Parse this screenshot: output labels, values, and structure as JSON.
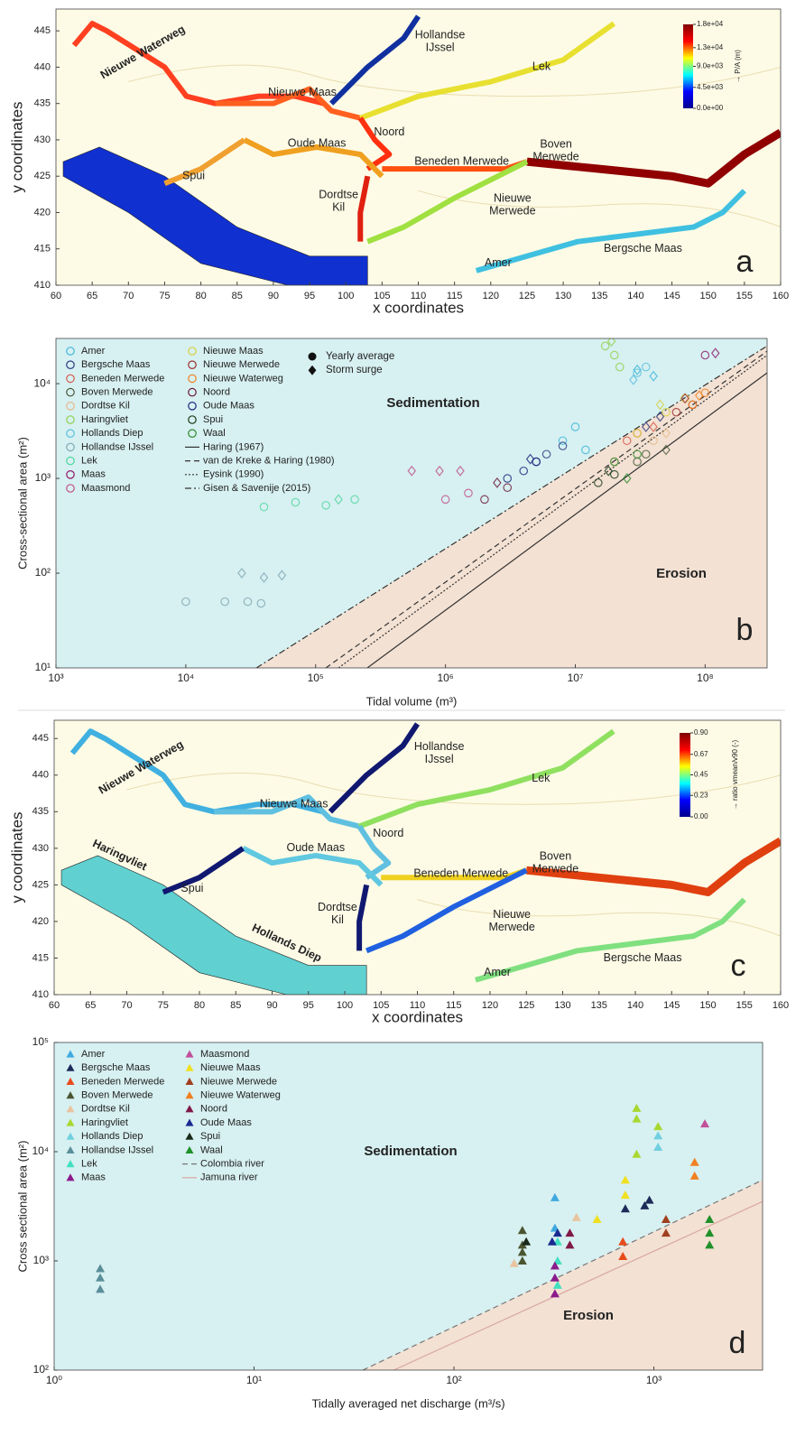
{
  "chart_data": [
    {
      "type": "map",
      "panel_label": "a",
      "xlabel": "x coordinates",
      "ylabel": "y coordinates",
      "xlim": [
        60,
        160
      ],
      "ylim": [
        410,
        448
      ],
      "xticks": [
        60,
        65,
        70,
        75,
        80,
        85,
        90,
        95,
        100,
        105,
        110,
        115,
        120,
        125,
        130,
        135,
        140,
        145,
        150,
        155,
        160
      ],
      "yticks": [
        410,
        415,
        420,
        425,
        430,
        435,
        440,
        445
      ],
      "colorbar": {
        "label": "→ P/A (m)",
        "clim": [
          0,
          18000
        ],
        "colors": [
          "#00008f",
          "#0000ff",
          "#00ffff",
          "#ffff00",
          "#ff0000",
          "#800000"
        ],
        "ticks": [
          {
            "value": 0,
            "label": "0.0e+00"
          },
          {
            "value": 4500,
            "label": "4.5e+03"
          },
          {
            "value": 9000,
            "label": "9.0e+03"
          },
          {
            "value": 13000,
            "label": "1.3e+04"
          },
          {
            "value": 18000,
            "label": "1.8e+04"
          }
        ]
      },
      "place_names": [
        [
          "Nieuwe Waterweg"
        ],
        [
          "Hollandse",
          "IJssel"
        ],
        [
          "Lek"
        ],
        [
          "Nieuwe Maas"
        ],
        [
          "Noord"
        ],
        [
          "Oude Maas"
        ],
        [
          "Beneden Merwede"
        ],
        [
          "Boven",
          "Merwede"
        ],
        [
          "Spui"
        ],
        [
          "Dordtse",
          "Kil"
        ],
        [
          "Nieuwe",
          "Merwede"
        ],
        [
          "Bergsche Maas"
        ],
        [
          "Amer"
        ]
      ]
    },
    {
      "type": "scatter",
      "panel_label": "b",
      "xlabel": "Tidal volume (m³)",
      "ylabel": "Cross-sectional area (m²)",
      "log_x": true,
      "log_y": true,
      "xlim": [
        1000,
        300000000
      ],
      "ylim": [
        10,
        30000
      ],
      "xticks": [
        {
          "value": 1000,
          "label": "10³"
        },
        {
          "value": 10000,
          "label": "10⁴"
        },
        {
          "value": 100000,
          "label": "10⁵"
        },
        {
          "value": 1000000,
          "label": "10⁶"
        },
        {
          "value": 10000000,
          "label": "10⁷"
        },
        {
          "value": 100000000,
          "label": "10⁸"
        }
      ],
      "yticks": [
        {
          "value": 10,
          "label": "10¹"
        },
        {
          "value": 100,
          "label": "10²"
        },
        {
          "value": 1000,
          "label": "10³"
        },
        {
          "value": 10000,
          "label": "10⁴"
        }
      ],
      "region_colors": {
        "sedimentation": "#d7f0f1",
        "erosion": "#f3e1d3"
      },
      "annotations": [
        {
          "text": "Sedimentation",
          "color": "#5b9bd5"
        },
        {
          "text": "Erosion",
          "color": "#d9342b"
        }
      ],
      "marker_legend": [
        "Yearly average",
        "Storm surge"
      ],
      "series": [
        {
          "name": "Amer",
          "color": "#3fb7d9",
          "x": [
            8000000,
            10000000,
            12000000
          ],
          "values": [
            2500,
            3500,
            2000
          ],
          "storm_x": [
            30000000,
            40000000
          ],
          "storm_values": [
            14000,
            12000
          ]
        },
        {
          "name": "Bergsche Maas",
          "color": "#2b3a80",
          "x": [
            5000000,
            6000000,
            8000000
          ],
          "values": [
            1500,
            1800,
            2200
          ],
          "storm_x": [
            35000000,
            45000000
          ],
          "storm_values": [
            3500,
            4500
          ]
        },
        {
          "name": "Beneden Merwede",
          "color": "#d45a4a",
          "x": [
            25000000,
            30000000
          ],
          "values": [
            2500,
            3000
          ],
          "storm_x": [
            40000000
          ],
          "storm_values": [
            3500
          ]
        },
        {
          "name": "Boven Merwede",
          "color": "#4a5a3a",
          "x": [
            30000000,
            35000000
          ],
          "values": [
            1500,
            1800
          ],
          "storm_x": [
            50000000
          ],
          "storm_values": [
            2000
          ]
        },
        {
          "name": "Dordtse Kil",
          "color": "#e6b98a",
          "x": [
            20000000,
            40000000
          ],
          "values": [
            1500,
            2500
          ],
          "storm_x": [
            50000000
          ],
          "storm_values": [
            3000
          ]
        },
        {
          "name": "Haringvliet",
          "color": "#8fd14f",
          "x": [
            17000000,
            20000000,
            22000000
          ],
          "values": [
            25000,
            20000,
            15000
          ],
          "storm_x": [
            19000000
          ],
          "storm_values": [
            28000
          ]
        },
        {
          "name": "Hollands Diep",
          "color": "#5bc0de",
          "x": [
            30000000,
            35000000
          ],
          "values": [
            13000,
            15000
          ],
          "storm_x": [
            28000000
          ],
          "storm_values": [
            11000
          ]
        },
        {
          "name": "Hollandse IJssel",
          "color": "#7fa8b4",
          "x": [
            10000,
            20000,
            30000,
            38000
          ],
          "values": [
            50,
            50,
            50,
            48
          ],
          "storm_x": [
            27000,
            40000,
            55000
          ],
          "storm_values": [
            100,
            90,
            95
          ]
        },
        {
          "name": "Lek",
          "color": "#4fd6a0",
          "x": [
            40000,
            70000,
            120000,
            200000
          ],
          "values": [
            500,
            560,
            520,
            600
          ],
          "storm_x": [
            150000
          ],
          "storm_values": [
            600
          ]
        },
        {
          "name": "Maas",
          "color": "#8b1a6b",
          "x": [
            100000000
          ],
          "values": [
            20000
          ],
          "storm_x": [
            120000000
          ],
          "storm_values": [
            21000
          ]
        },
        {
          "name": "Maasmond",
          "color": "#c0508a",
          "x": [
            1000000,
            1500000
          ],
          "values": [
            600,
            700
          ],
          "storm_x": [
            550000,
            900000,
            1300000
          ],
          "storm_values": [
            1200,
            1200,
            1200
          ]
        },
        {
          "name": "Nieuwe Maas",
          "color": "#d8d040",
          "x": [
            30000000,
            50000000,
            70000000
          ],
          "values": [
            3000,
            5000,
            7000
          ],
          "storm_x": [
            45000000
          ],
          "storm_values": [
            6000
          ]
        },
        {
          "name": "Nieuwe Merwede",
          "color": "#9b3030",
          "x": [
            60000000,
            80000000
          ],
          "values": [
            5000,
            6000
          ],
          "storm_x": [
            70000000
          ],
          "storm_values": [
            7000
          ]
        },
        {
          "name": "Nieuwe Waterweg",
          "color": "#f08020",
          "x": [
            80000000,
            100000000
          ],
          "values": [
            6000,
            8000
          ],
          "storm_x": [
            90000000
          ],
          "storm_values": [
            7500
          ]
        },
        {
          "name": "Noord",
          "color": "#6b1a3a",
          "x": [
            2000000,
            3000000
          ],
          "values": [
            600,
            800
          ],
          "storm_x": [
            2500000
          ],
          "storm_values": [
            900
          ]
        },
        {
          "name": "Oude Maas",
          "color": "#1a2a80",
          "x": [
            3000000,
            4000000,
            5000000
          ],
          "values": [
            1000,
            1200,
            1500
          ],
          "storm_x": [
            4500000
          ],
          "storm_values": [
            1600
          ]
        },
        {
          "name": "Spui",
          "color": "#1a3a1a",
          "x": [
            15000000,
            20000000
          ],
          "values": [
            900,
            1100
          ],
          "storm_x": [
            18000000
          ],
          "storm_values": [
            1200
          ]
        },
        {
          "name": "Waal",
          "color": "#2a8a2a",
          "x": [
            20000000,
            30000000
          ],
          "values": [
            1500,
            1800
          ],
          "storm_x": [
            25000000
          ],
          "storm_values": [
            1000
          ]
        }
      ],
      "lines": [
        {
          "name": "Haring (1967)",
          "style": "solid",
          "color": "#333333",
          "x": [
            250000,
            300000000
          ],
          "values": [
            10,
            13000
          ]
        },
        {
          "name": "van de Kreke & Haring (1980)",
          "style": "dashed",
          "color": "#333333",
          "x": [
            120000,
            300000000
          ],
          "values": [
            10,
            22000
          ]
        },
        {
          "name": "Eysink (1990)",
          "style": "dotted",
          "color": "#333333",
          "x": [
            150000,
            300000000
          ],
          "values": [
            10,
            20000
          ]
        },
        {
          "name": "Gisen & Savenije (2015)",
          "style": "dashdot",
          "color": "#333333",
          "x": [
            35000,
            300000000
          ],
          "values": [
            10,
            25000
          ]
        }
      ]
    },
    {
      "type": "map",
      "panel_label": "c",
      "xlabel": "x coordinates",
      "ylabel": "y coordinates",
      "xlim": [
        60,
        160
      ],
      "ylim": [
        410,
        447.5
      ],
      "xticks": [
        60,
        65,
        70,
        75,
        80,
        85,
        90,
        95,
        100,
        105,
        110,
        115,
        120,
        125,
        130,
        135,
        140,
        145,
        150,
        155,
        160
      ],
      "yticks": [
        410,
        415,
        420,
        425,
        430,
        435,
        440,
        445
      ],
      "colorbar": {
        "label": "→ ratio vmean/v90 (-)",
        "clim": [
          0,
          0.9
        ],
        "colors": [
          "#00008f",
          "#0000ff",
          "#00ffff",
          "#ffff00",
          "#ff0000",
          "#800000"
        ],
        "ticks": [
          {
            "value": 0,
            "label": "0.00"
          },
          0.23,
          0.45,
          0.67,
          {
            "value": 0.9,
            "label": "0.90"
          }
        ]
      },
      "place_names": [
        [
          "Nieuwe Waterweg"
        ],
        [
          "Hollandse",
          "IJssel"
        ],
        [
          "Lek"
        ],
        [
          "Nieuwe Maas"
        ],
        [
          "Noord"
        ],
        [
          "Oude Maas"
        ],
        [
          "Beneden Merwede"
        ],
        [
          "Boven",
          "Merwede"
        ],
        [
          "Haringvliet"
        ],
        [
          "Spui"
        ],
        [
          "Hollands Diep"
        ],
        [
          "Dordtse",
          "Kil"
        ],
        [
          "Nieuwe",
          "Merwede"
        ],
        [
          "Bergsche Maas"
        ],
        [
          "Amer"
        ]
      ]
    },
    {
      "type": "scatter",
      "panel_label": "d",
      "xlabel": "Tidally averaged net discharge (m³/s)",
      "ylabel": "Cross sectional area (m²)",
      "log_x": true,
      "log_y": true,
      "xlim": [
        1,
        3500
      ],
      "ylim": [
        100,
        100000
      ],
      "xticks": [
        {
          "value": 1,
          "label": "10⁰"
        },
        {
          "value": 10,
          "label": "10¹"
        },
        {
          "value": 100,
          "label": "10²"
        },
        {
          "value": 1000,
          "label": "10³"
        }
      ],
      "yticks": [
        {
          "value": 100,
          "label": "10²"
        },
        {
          "value": 1000,
          "label": "10³"
        },
        {
          "value": 10000,
          "label": "10⁴"
        },
        {
          "value": 100000,
          "label": "10⁵"
        }
      ],
      "region_colors": {
        "sedimentation": "#d7f0f1",
        "erosion": "#f3e1d3"
      },
      "annotations": [
        {
          "text": "Sedimentation",
          "color": "#5b9bd5"
        },
        {
          "text": "Erosion",
          "color": "#d9342b"
        }
      ],
      "series": [
        {
          "name": "Amer",
          "color": "#3fa9e0",
          "x": [
            320,
            320
          ],
          "values": [
            2000,
            3800
          ]
        },
        {
          "name": "Bergsche Maas",
          "color": "#1c2a5a",
          "x": [
            720,
            900,
            950
          ],
          "values": [
            3000,
            3200,
            3600
          ]
        },
        {
          "name": "Beneden Merwede",
          "color": "#e84a1a",
          "x": [
            700,
            700
          ],
          "values": [
            1100,
            1500
          ]
        },
        {
          "name": "Boven Merwede",
          "color": "#4a5530",
          "x": [
            220,
            220,
            220,
            220
          ],
          "values": [
            1000,
            1200,
            1400,
            1900
          ]
        },
        {
          "name": "Dordtse Kil",
          "color": "#e8c4a0",
          "x": [
            200,
            410
          ],
          "values": [
            950,
            2500
          ]
        },
        {
          "name": "Haringvliet",
          "color": "#a8d830",
          "x": [
            820,
            820,
            820,
            1050
          ],
          "values": [
            25000,
            20000,
            9500,
            17000
          ]
        },
        {
          "name": "Hollands Diep",
          "color": "#70d0e0",
          "x": [
            1050,
            1050
          ],
          "values": [
            11000,
            14000
          ]
        },
        {
          "name": "Hollandse IJssel",
          "color": "#5a8f9a",
          "x": [
            1.7,
            1.7,
            1.7
          ],
          "values": [
            550,
            700,
            850
          ]
        },
        {
          "name": "Lek",
          "color": "#40e0c0",
          "x": [
            330,
            330,
            330
          ],
          "values": [
            600,
            1000,
            1500
          ]
        },
        {
          "name": "Maas",
          "color": "#8b1a8b",
          "x": [
            320,
            320,
            320
          ],
          "values": [
            500,
            700,
            900
          ]
        },
        {
          "name": "Maasmond",
          "color": "#c0509a",
          "x": [
            1800
          ],
          "values": [
            18000
          ]
        },
        {
          "name": "Nieuwe Maas",
          "color": "#f0e020",
          "x": [
            520,
            720,
            720
          ],
          "values": [
            2400,
            4000,
            5500
          ]
        },
        {
          "name": "Nieuwe Merwede",
          "color": "#a04020",
          "x": [
            1150,
            1150
          ],
          "values": [
            1800,
            2400
          ]
        },
        {
          "name": "Nieuwe Waterweg",
          "color": "#f08020",
          "x": [
            1600,
            1600
          ],
          "values": [
            6000,
            8000
          ]
        },
        {
          "name": "Noord",
          "color": "#801848",
          "x": [
            380,
            380
          ],
          "values": [
            1400,
            1800
          ]
        },
        {
          "name": "Oude Maas",
          "color": "#1a2a90",
          "x": [
            310,
            330
          ],
          "values": [
            1500,
            1800
          ]
        },
        {
          "name": "Spui",
          "color": "#1a2a1a",
          "x": [
            230
          ],
          "values": [
            1500
          ]
        },
        {
          "name": "Waal",
          "color": "#20902a",
          "x": [
            1900,
            1900,
            1900
          ],
          "values": [
            1400,
            1800,
            2400
          ]
        }
      ],
      "lines": [
        {
          "name": "Colombia river",
          "style": "dashed",
          "color": "#777777",
          "x": [
            35,
            3500
          ],
          "values": [
            100,
            5500
          ]
        },
        {
          "name": "Jamuna river",
          "style": "solid",
          "color": "#d8a8a0",
          "x": [
            50,
            3500
          ],
          "values": [
            100,
            3500
          ]
        }
      ]
    }
  ]
}
